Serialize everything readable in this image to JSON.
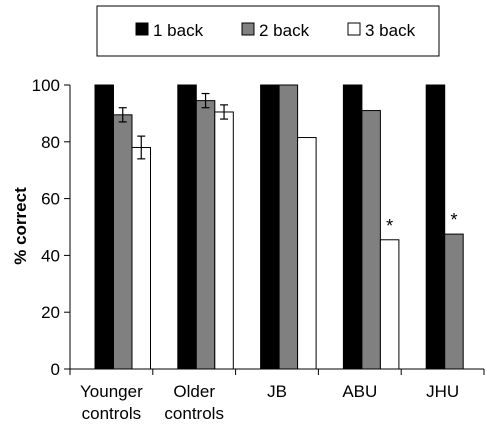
{
  "chart_data": {
    "type": "bar",
    "title": "",
    "xlabel": "",
    "ylabel": "% correct",
    "ylim": [
      0,
      100
    ],
    "yticks": [
      0,
      20,
      40,
      60,
      80,
      100
    ],
    "grid": false,
    "legend_position": "top",
    "categories": [
      [
        "Younger",
        "controls"
      ],
      [
        "Older",
        "controls"
      ],
      [
        "JB"
      ],
      [
        "ABU"
      ],
      [
        "JHU"
      ]
    ],
    "series": [
      {
        "name": "1 back",
        "color": "#000000",
        "values": [
          100,
          100,
          100,
          100,
          100
        ],
        "errors": [
          null,
          null,
          null,
          null,
          null
        ]
      },
      {
        "name": "2 back",
        "color": "#808080",
        "values": [
          89.5,
          94.5,
          100,
          91,
          47.5
        ],
        "errors": [
          2.5,
          2.5,
          null,
          null,
          null
        ]
      },
      {
        "name": "3 back",
        "color": "#ffffff",
        "values": [
          78,
          90.5,
          81.5,
          45.5,
          null
        ],
        "errors": [
          4,
          2.5,
          null,
          null,
          null
        ]
      }
    ],
    "annotations": [
      {
        "text": "*",
        "category": 3,
        "series": 2
      },
      {
        "text": "*",
        "category": 4,
        "series": 1
      }
    ]
  }
}
